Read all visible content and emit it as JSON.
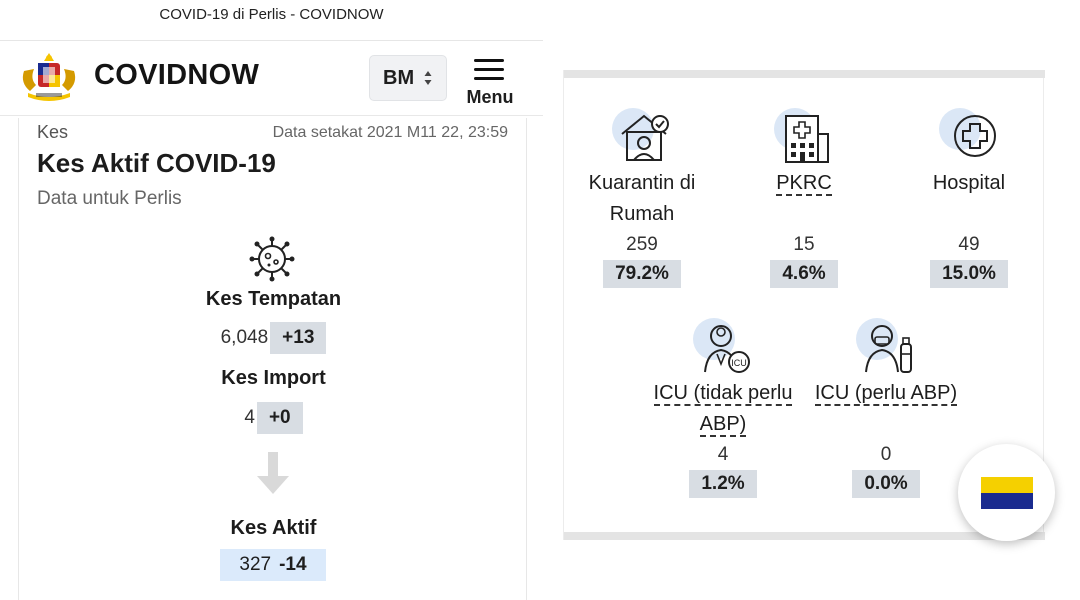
{
  "browser": {
    "title": "COVID-19 di Perlis - COVIDNOW"
  },
  "header": {
    "brand": "COVIDNOW",
    "language": "BM",
    "menu_label": "Menu"
  },
  "card": {
    "category": "Kes",
    "updated": "Data setakat 2021 M11 22, 23:59",
    "title": "Kes Aktif COVID-19",
    "subtitle": "Data untuk Perlis"
  },
  "stats": {
    "local": {
      "label": "Kes Tempatan",
      "value": "6,048",
      "delta": "+13"
    },
    "import": {
      "label": "Kes Import",
      "value": "4",
      "delta": "+0"
    },
    "active": {
      "label": "Kes Aktif",
      "value": "327",
      "delta": "-14"
    }
  },
  "breakdown": [
    {
      "name_line1": "Kuarantin di",
      "name_line2": "Rumah",
      "count": "259",
      "pct": "79.2%",
      "icon": "home-quarantine-icon"
    },
    {
      "name_line1": "PKRC",
      "count": "15",
      "pct": "4.6%",
      "icon": "pkrc-building-icon"
    },
    {
      "name_line1": "Hospital",
      "count": "49",
      "pct": "15.0%",
      "icon": "hospital-cross-icon"
    },
    {
      "name_line1": "ICU (tidak perlu",
      "name_line2": "ABP)",
      "count": "4",
      "pct": "1.2%",
      "icon": "icu-doctor-icon"
    },
    {
      "name_line1": "ICU (perlu ABP)",
      "count": "0",
      "pct": "0.0%",
      "icon": "icu-ventilator-icon"
    }
  ],
  "colors": {
    "delta_bg": "#d8dde3",
    "active_bg": "#dbeafb",
    "icon_blob": "#dbe7f6",
    "flag_yellow": "#f5d000",
    "flag_blue": "#1a2b8f"
  }
}
